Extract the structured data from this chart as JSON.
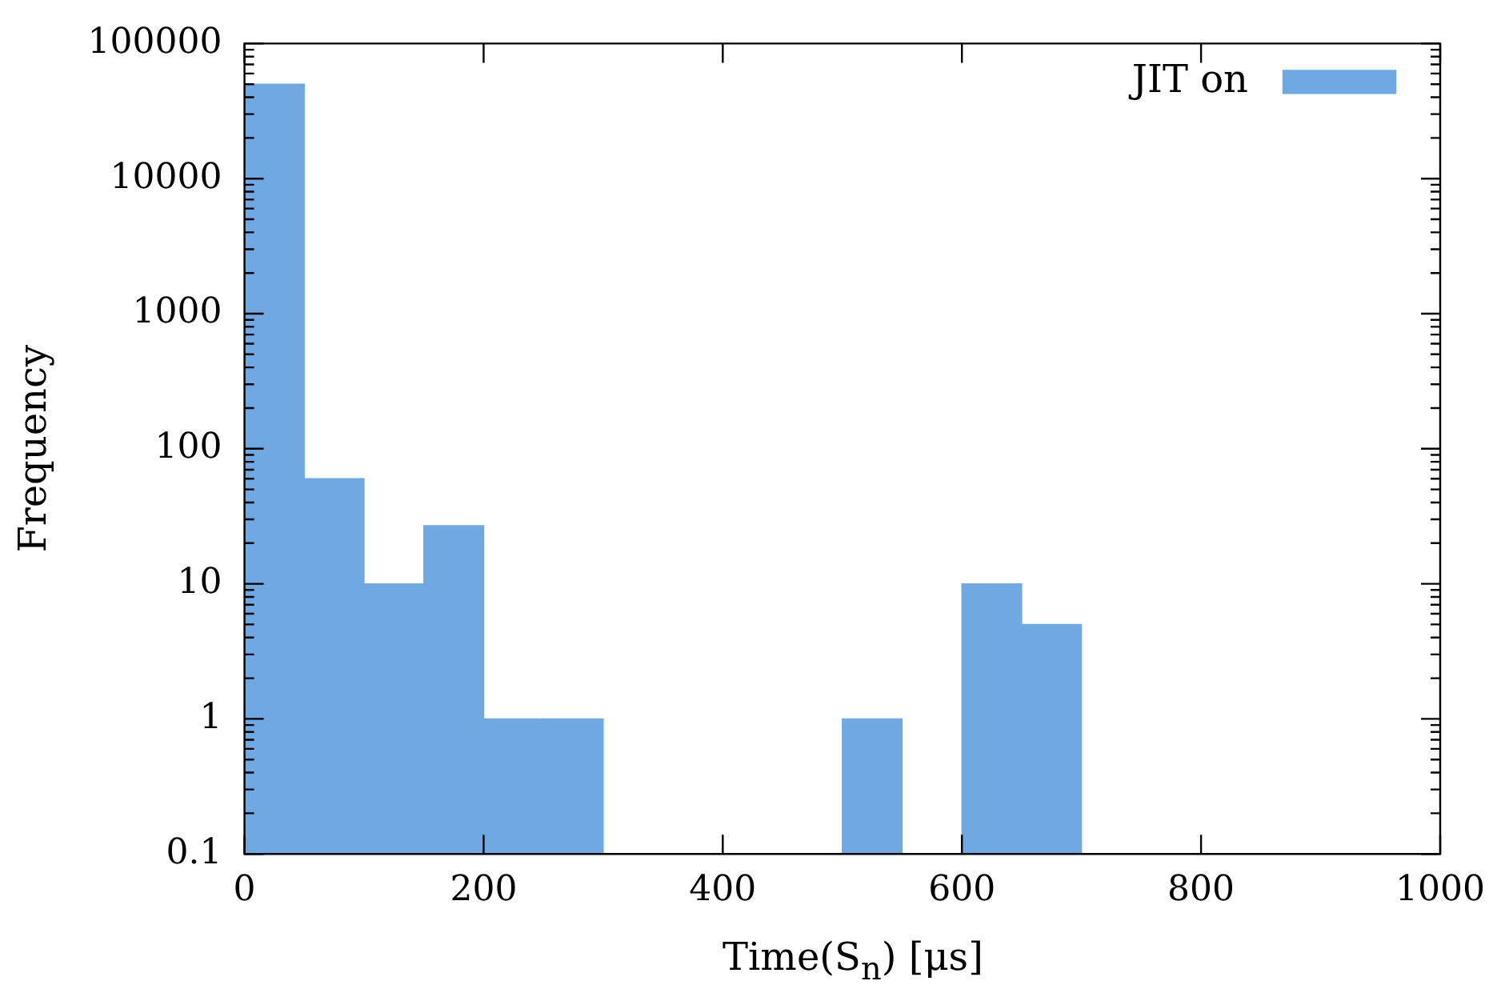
{
  "chart_data": {
    "type": "histogram",
    "xlabel": "Time(S$_{n}$) [μs]",
    "ylabel": "Frequency",
    "bins": [
      0,
      50,
      100,
      150,
      200,
      250,
      300,
      350,
      400,
      450,
      500,
      550,
      600,
      650,
      700
    ],
    "series": [
      {
        "name": "JIT on",
        "color": "#70a9e2",
        "values": [
          50000,
          60,
          10,
          27,
          1,
          1,
          null,
          null,
          null,
          null,
          1,
          null,
          10,
          5
        ]
      }
    ],
    "xlim": [
      0,
      1000
    ],
    "xticks": [
      0,
      200,
      400,
      600,
      800,
      1000
    ],
    "ylim": [
      0.1,
      100000
    ],
    "yticks": [
      0.1,
      1,
      10,
      100,
      1000,
      10000,
      100000
    ],
    "log": true,
    "grid": false,
    "legend": "top right"
  }
}
